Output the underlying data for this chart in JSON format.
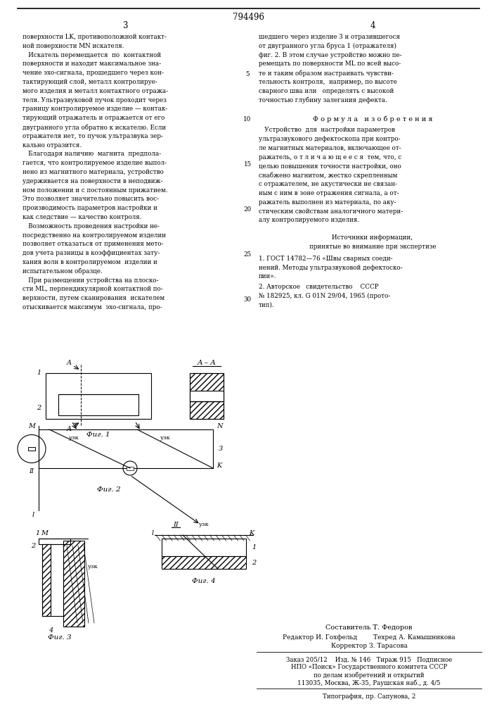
{
  "patent_number": "794496",
  "page_left": "3",
  "page_right": "4",
  "col_left_text": [
    "поверхности LK, противоположной контакт-",
    "ной поверхности MN искателя.",
    "   Искатель перемещается  по  контактной",
    "поверхности и находит максимальное зна-",
    "чение эхо-сигнала, прошедшего через кон-",
    "тактирующий слой, металл контролируе-",
    "мого изделия и металл контактного отража-",
    "теля. Ультразвуковой пучок проходит через",
    "границу контролируемое изделие — контак-",
    "тирующий отражатель и отражается от его",
    "двугранного угла обратно к искателю. Если",
    "отражателя нет, то пучок ультразвука зер-",
    "кально отразится.",
    "   Благодаря наличию  магнита  предпола-",
    "гается, что контролируемое изделие выпол-",
    "нено из магнитного материала, устройство",
    "удерживается на поверхности в неподвиж-",
    "ном положении и с постоянным прижатием.",
    "Это позволяет значительно повысить вос-",
    "производимость параметров настройки и",
    "как следствие — качество контроля.",
    "   Возможность проведения настройки не-",
    "посредственно на контролируемом изделии",
    "позволяет отказаться от применения мето-",
    "дов учета разницы в коэффициентах зату-",
    "хания волн в контролируемом  изделии и",
    "испытательном образце.",
    "   При размещении устройства на плоско-",
    "сти ML, перпендикулярной контактной по-",
    "верхности, путем сканирования  искателем",
    "отыскивается максимум  эхо-сигнала, про-"
  ],
  "col_right_text": [
    "шедшего через изделие 3 и отразившегося",
    "от двугранного угла бруса 1 (отражателя)",
    "фиг. 2. В этом случае устройство можно пе-",
    "ремещать по поверхности ML по всей высо-",
    "те и таким образом настраивать чувстви-",
    "тельность контроля,  например, по высоте",
    "сварного шва или   определять с высокой",
    "точностью глубину залегания дефекта."
  ],
  "formula_header": "Ф о р м у л а   и з о б р е т е н и я",
  "formula_text": [
    "   Устройство  для  настройки параметров",
    "ультразвукового дефектоскопа при контро-",
    "ле магнитных материалов, включающее от-",
    "ражатель, о т л и ч а ю щ е е с я  тем, что, с",
    "целью повышения точности настройки, оно",
    "снабжено магнитом, жестко скрепленным",
    "с отражателем, не акустически не связан-",
    "ным с ним в зоне отражения сигнала, а от-",
    "ражатель выполнен из материала, по аку-",
    "стическим свойствам аналогичного матери-",
    "алу контролируемого изделия."
  ],
  "sources_header": "Источники информации,",
  "sources_subheader": "принятые во внимание при экспертизе",
  "source1a": "1. ГОСТ 14782—76 «Швы сварных соеди-",
  "source1b": "нений. Методы ультразвуковой дефектоско-",
  "source1c": "пии».",
  "source2a": "2. Авторское   свидетельство    СССР",
  "source2b": "№ 182925, кл. G 01N 29/04, 1965 (прото-",
  "source2c": "тип).",
  "compositor": "Составитель Т. Федоров",
  "editor_line": "Редактор И. Гохфельд        Техред А. Камышникова",
  "corrector_line": "Корректор З. Тарасова",
  "order_line": "Заказ 205/12    Изд. № 146   Тираж 915   Подписное",
  "npo_line": "НПО «Поиск» Государственного комитета СССР",
  "dept_line": "по делам изобретений и открытий",
  "addr_line": "113035, Москва, Ж-35, Раушская наб., д. 4/5",
  "print_line": "Типография, пр. Сапунова, 2",
  "bg_color": "#ffffff",
  "text_color": "#000000"
}
